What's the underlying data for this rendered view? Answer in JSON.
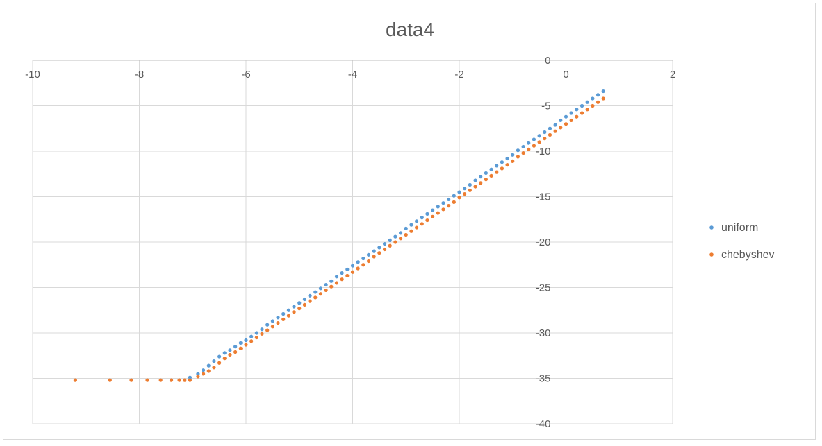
{
  "chart_data": {
    "type": "scatter",
    "title": "data4",
    "xlabel": "",
    "ylabel": "",
    "xlim": [
      -10,
      2
    ],
    "ylim": [
      -40,
      0
    ],
    "x_ticks": [
      -10,
      -8,
      -6,
      -4,
      -2,
      0,
      2
    ],
    "y_ticks": [
      0,
      -5,
      -10,
      -15,
      -20,
      -25,
      -30,
      -35,
      -40
    ],
    "grid": true,
    "legend_position": "right",
    "series": [
      {
        "name": "uniform",
        "color": "#5b9bd5",
        "x": [
          -7.05,
          -6.9,
          -6.8,
          -6.7,
          -6.6,
          -6.5,
          -6.4,
          -6.3,
          -6.2,
          -6.1,
          -6.0,
          -5.9,
          -5.8,
          -5.7,
          -5.6,
          -5.5,
          -5.4,
          -5.3,
          -5.2,
          -5.1,
          -5.0,
          -4.9,
          -4.8,
          -4.7,
          -4.6,
          -4.5,
          -4.4,
          -4.3,
          -4.2,
          -4.1,
          -4.0,
          -3.9,
          -3.8,
          -3.7,
          -3.6,
          -3.5,
          -3.4,
          -3.3,
          -3.2,
          -3.1,
          -3.0,
          -2.9,
          -2.8,
          -2.7,
          -2.6,
          -2.5,
          -2.4,
          -2.3,
          -2.2,
          -2.1,
          -2.0,
          -1.9,
          -1.8,
          -1.7,
          -1.6,
          -1.5,
          -1.4,
          -1.3,
          -1.2,
          -1.1,
          -1.0,
          -0.9,
          -0.8,
          -0.7,
          -0.6,
          -0.5,
          -0.4,
          -0.3,
          -0.2,
          -0.1,
          0.0,
          0.1,
          0.2,
          0.3,
          0.4,
          0.5,
          0.6,
          0.7
        ],
        "y": [
          -34.9,
          -34.5,
          -34.1,
          -33.6,
          -33.1,
          -32.6,
          -32.2,
          -31.9,
          -31.5,
          -31.1,
          -30.8,
          -30.4,
          -30.0,
          -29.6,
          -29.1,
          -28.7,
          -28.3,
          -27.9,
          -27.5,
          -27.1,
          -26.7,
          -26.3,
          -25.9,
          -25.5,
          -25.1,
          -24.7,
          -24.3,
          -23.8,
          -23.4,
          -23.0,
          -22.6,
          -22.2,
          -21.8,
          -21.4,
          -21.0,
          -20.6,
          -20.2,
          -19.8,
          -19.4,
          -19.0,
          -18.5,
          -18.1,
          -17.7,
          -17.3,
          -16.9,
          -16.5,
          -16.1,
          -15.7,
          -15.3,
          -14.9,
          -14.5,
          -14.1,
          -13.7,
          -13.2,
          -12.8,
          -12.4,
          -12.0,
          -11.6,
          -11.2,
          -10.8,
          -10.4,
          -9.9,
          -9.5,
          -9.1,
          -8.7,
          -8.3,
          -7.9,
          -7.5,
          -7.1,
          -6.6,
          -6.2,
          -5.8,
          -5.4,
          -5.0,
          -4.6,
          -4.2,
          -3.8,
          -3.4
        ]
      },
      {
        "name": "chebyshev",
        "color": "#ed7d31",
        "x": [
          -9.2,
          -8.55,
          -8.15,
          -7.85,
          -7.6,
          -7.4,
          -7.25,
          -7.15,
          -7.05,
          -6.9,
          -6.8,
          -6.7,
          -6.6,
          -6.5,
          -6.4,
          -6.3,
          -6.2,
          -6.1,
          -6.0,
          -5.9,
          -5.8,
          -5.7,
          -5.6,
          -5.5,
          -5.4,
          -5.3,
          -5.2,
          -5.1,
          -5.0,
          -4.9,
          -4.8,
          -4.7,
          -4.6,
          -4.5,
          -4.4,
          -4.3,
          -4.2,
          -4.1,
          -4.0,
          -3.9,
          -3.8,
          -3.7,
          -3.6,
          -3.5,
          -3.4,
          -3.3,
          -3.2,
          -3.1,
          -3.0,
          -2.9,
          -2.8,
          -2.7,
          -2.6,
          -2.5,
          -2.4,
          -2.3,
          -2.2,
          -2.1,
          -2.0,
          -1.9,
          -1.8,
          -1.7,
          -1.6,
          -1.5,
          -1.4,
          -1.3,
          -1.2,
          -1.1,
          -1.0,
          -0.9,
          -0.8,
          -0.7,
          -0.6,
          -0.5,
          -0.4,
          -0.3,
          -0.2,
          -0.1,
          0.0,
          0.1,
          0.2,
          0.3,
          0.4,
          0.5,
          0.6,
          0.7
        ],
        "y": [
          -35.2,
          -35.2,
          -35.2,
          -35.2,
          -35.2,
          -35.2,
          -35.2,
          -35.2,
          -35.2,
          -34.8,
          -34.5,
          -34.2,
          -33.8,
          -33.3,
          -32.8,
          -32.4,
          -32.1,
          -31.7,
          -31.3,
          -30.9,
          -30.5,
          -30.1,
          -29.7,
          -29.3,
          -28.9,
          -28.5,
          -28.1,
          -27.7,
          -27.3,
          -26.9,
          -26.5,
          -26.1,
          -25.7,
          -25.3,
          -24.9,
          -24.5,
          -24.1,
          -23.7,
          -23.3,
          -22.9,
          -22.5,
          -22.1,
          -21.6,
          -21.2,
          -20.8,
          -20.4,
          -20.0,
          -19.6,
          -19.2,
          -18.8,
          -18.4,
          -18.0,
          -17.6,
          -17.2,
          -16.8,
          -16.4,
          -16.0,
          -15.6,
          -15.1,
          -14.7,
          -14.3,
          -13.9,
          -13.5,
          -13.1,
          -12.7,
          -12.3,
          -11.9,
          -11.5,
          -11.1,
          -10.6,
          -10.2,
          -9.8,
          -9.4,
          -9.0,
          -8.6,
          -8.2,
          -7.8,
          -7.4,
          -7.0,
          -6.6,
          -6.2,
          -5.8,
          -5.4,
          -5.0,
          -4.6,
          -4.2
        ]
      }
    ]
  }
}
